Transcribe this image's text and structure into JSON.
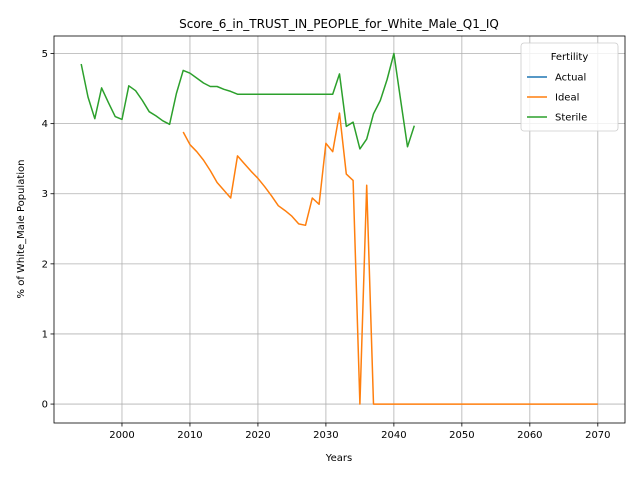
{
  "chart_data": {
    "type": "line",
    "title": "Score_6_in_TRUST_IN_PEOPLE_for_White_Male_Q1_IQ",
    "xlabel": "Years",
    "ylabel": "% of White_Male Population",
    "xlim": [
      1990,
      2074
    ],
    "ylim": [
      -0.27,
      5.25
    ],
    "xticks": [
      2000,
      2010,
      2020,
      2030,
      2040,
      2050,
      2060,
      2070
    ],
    "yticks": [
      0,
      1,
      2,
      3,
      4,
      5
    ],
    "grid": true,
    "legend": {
      "title": "Fertility",
      "placement": "top-right"
    },
    "series": [
      {
        "name": "Actual",
        "color": "#1f77b4",
        "points": []
      },
      {
        "name": "Ideal",
        "color": "#ff7f0e",
        "points": [
          [
            2009,
            3.88
          ],
          [
            2010,
            3.7
          ],
          [
            2011,
            3.6
          ],
          [
            2012,
            3.48
          ],
          [
            2013,
            3.33
          ],
          [
            2014,
            3.16
          ],
          [
            2015,
            3.05
          ],
          [
            2016,
            2.94
          ],
          [
            2017,
            3.54
          ],
          [
            2018,
            3.43
          ],
          [
            2019,
            3.32
          ],
          [
            2020,
            3.22
          ],
          [
            2021,
            3.1
          ],
          [
            2022,
            2.97
          ],
          [
            2023,
            2.83
          ],
          [
            2024,
            2.76
          ],
          [
            2025,
            2.68
          ],
          [
            2026,
            2.57
          ],
          [
            2027,
            2.55
          ],
          [
            2028,
            2.94
          ],
          [
            2029,
            2.85
          ],
          [
            2030,
            3.72
          ],
          [
            2031,
            3.6
          ],
          [
            2032,
            4.15
          ],
          [
            2033,
            3.28
          ],
          [
            2034,
            3.19
          ],
          [
            2035,
            0.0
          ],
          [
            2036,
            3.12
          ],
          [
            2037,
            0.0
          ],
          [
            2040,
            0.0
          ],
          [
            2043,
            0.0
          ],
          [
            2045,
            0.0
          ],
          [
            2050,
            0.0
          ],
          [
            2060,
            0.0
          ],
          [
            2070,
            0.0
          ]
        ]
      },
      {
        "name": "Sterile",
        "color": "#2ca02c",
        "points": [
          [
            1994,
            4.85
          ],
          [
            1995,
            4.38
          ],
          [
            1996,
            4.07
          ],
          [
            1997,
            4.51
          ],
          [
            1998,
            4.3
          ],
          [
            1999,
            4.1
          ],
          [
            2000,
            4.06
          ],
          [
            2001,
            4.54
          ],
          [
            2002,
            4.47
          ],
          [
            2003,
            4.33
          ],
          [
            2004,
            4.17
          ],
          [
            2005,
            4.11
          ],
          [
            2006,
            4.04
          ],
          [
            2007,
            3.99
          ],
          [
            2008,
            4.43
          ],
          [
            2009,
            4.76
          ],
          [
            2010,
            4.72
          ],
          [
            2011,
            4.65
          ],
          [
            2012,
            4.58
          ],
          [
            2013,
            4.53
          ],
          [
            2014,
            4.53
          ],
          [
            2015,
            4.49
          ],
          [
            2016,
            4.46
          ],
          [
            2017,
            4.42
          ],
          [
            2018,
            4.42
          ],
          [
            2020,
            4.42
          ],
          [
            2025,
            4.42
          ],
          [
            2030,
            4.42
          ],
          [
            2031,
            4.42
          ],
          [
            2032,
            4.71
          ],
          [
            2033,
            3.96
          ],
          [
            2034,
            4.02
          ],
          [
            2035,
            3.64
          ],
          [
            2036,
            3.78
          ],
          [
            2037,
            4.14
          ],
          [
            2038,
            4.33
          ],
          [
            2039,
            4.63
          ],
          [
            2040,
            5.0
          ],
          [
            2041,
            4.33
          ],
          [
            2042,
            3.67
          ],
          [
            2043,
            3.97
          ]
        ]
      }
    ]
  }
}
